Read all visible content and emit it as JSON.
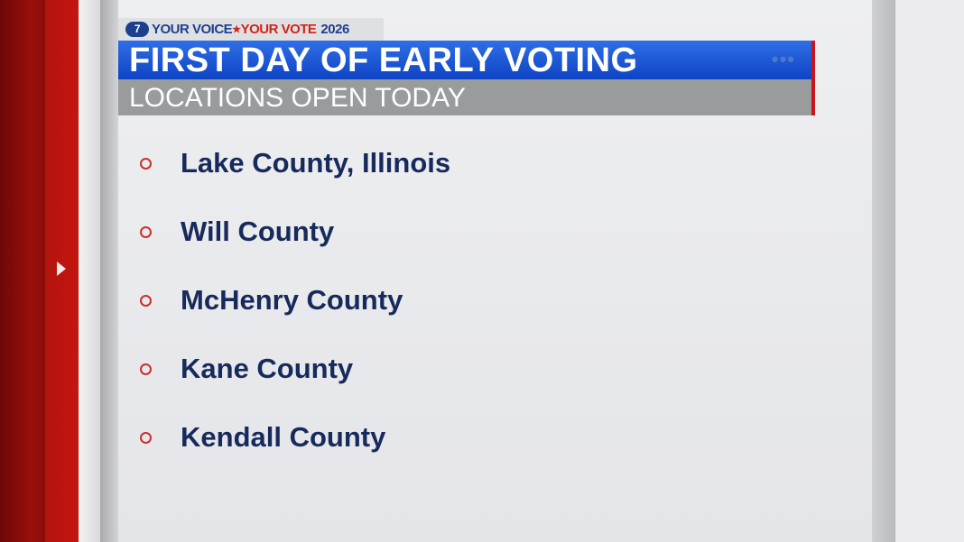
{
  "branding": {
    "logo_text": "abc7",
    "tag_part1": "YOUR VOICE",
    "tag_part2": "YOUR VOTE",
    "tag_year": "2026"
  },
  "headline": {
    "title": "FIRST DAY OF EARLY VOTING",
    "subtitle": "LOCATIONS OPEN TODAY",
    "more_icon": "•••"
  },
  "locations": [
    "Lake County, Illinois",
    "Will County",
    "McHenry County",
    "Kane County",
    "Kendall County"
  ],
  "colors": {
    "blue": "#1d4fd0",
    "red": "#c8141a",
    "text": "#172a5c"
  }
}
